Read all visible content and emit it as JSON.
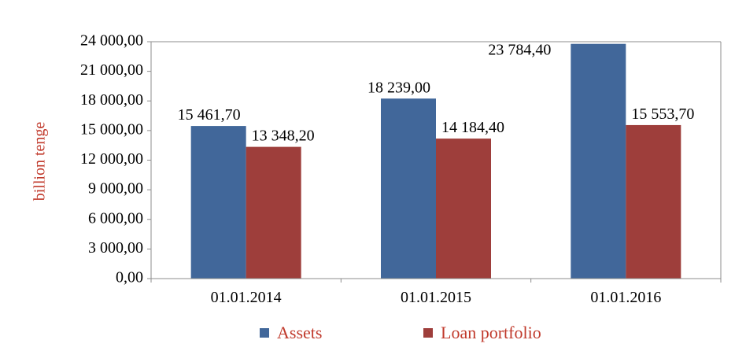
{
  "chart_data": {
    "type": "bar",
    "categories": [
      "01.01.2014",
      "01.01.2015",
      "01.01.2016"
    ],
    "series": [
      {
        "name": "Assets",
        "color": "#41679a",
        "values": [
          15461.7,
          18239.0,
          23784.4
        ],
        "labels": [
          "15 461,70",
          "18 239,00",
          "23 784,40"
        ]
      },
      {
        "name": "Loan portfolio",
        "color": "#9e3e3b",
        "values": [
          13348.2,
          14184.4,
          15553.7
        ],
        "labels": [
          "13 348,20",
          "14 184,40",
          "15 553,70"
        ]
      }
    ],
    "ylabel": "billion tenge",
    "ylim": [
      0,
      24000
    ],
    "yticks": [
      0,
      3000,
      6000,
      9000,
      12000,
      15000,
      18000,
      21000,
      24000
    ],
    "ytick_labels": [
      "0,00",
      "3 000,00",
      "6 000,00",
      "9 000,00",
      "12 000,00",
      "15 000,00",
      "18 000,00",
      "21 000,00",
      "24 000,00"
    ],
    "grid": false,
    "legend_position": "bottom"
  }
}
